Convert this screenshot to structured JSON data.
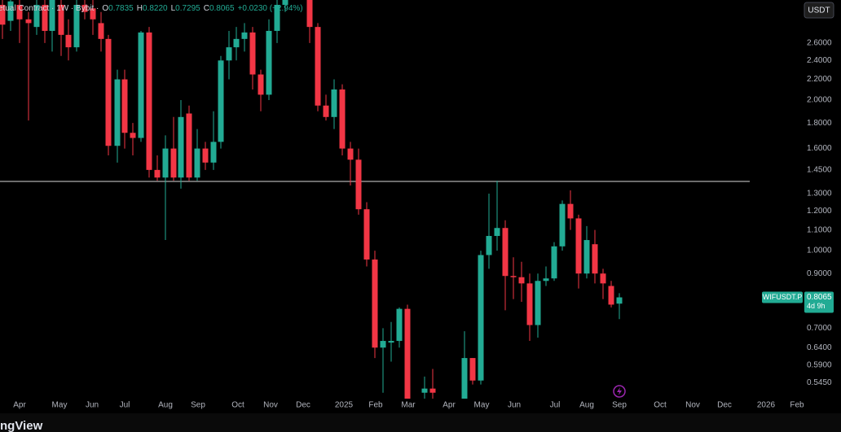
{
  "header": {
    "symbol": "etual Contract · 1W · Bybit ·",
    "ohlc": [
      {
        "key": "O",
        "value": "0.7835"
      },
      {
        "key": "H",
        "value": "0.8220"
      },
      {
        "key": "L",
        "value": "0.7295"
      },
      {
        "key": "C",
        "value": "0.8065"
      }
    ],
    "change": "+0.0230 (+2.94%)"
  },
  "currency": "USDT",
  "footer_logo": "ngView",
  "chart_data": {
    "type": "candlestick",
    "log_scale": true,
    "grid": false,
    "up_color": "#22ab94",
    "down_color": "#f23645",
    "x": [
      0.3,
      1.3,
      2.4,
      3.5,
      4.5,
      5.5,
      6.4,
      7.5,
      8.4,
      9.4,
      10.4,
      11.4,
      12.4,
      13.3,
      14.4,
      15.3,
      16.3,
      17.3,
      18.3,
      19.3,
      20.3,
      21.3,
      22.2,
      23.2,
      24.2,
      25.2,
      26.2,
      27.1,
      28.1,
      29,
      30,
      31,
      32,
      33,
      34,
      35,
      38,
      39,
      40,
      41,
      42,
      43,
      44,
      45,
      46,
      47,
      48,
      49,
      50,
      52.1,
      53.1,
      57,
      58,
      59,
      60,
      61,
      62,
      63,
      64,
      65,
      66,
      67,
      68,
      69,
      70,
      71,
      72,
      73,
      74,
      75,
      76
    ],
    "open": [
      3.1,
      2.88,
      3.1,
      2.9,
      2.8,
      3.1,
      2.75,
      3.1,
      2.7,
      2.55,
      3.1,
      3.05,
      2.85,
      2.65,
      1.62,
      2.2,
      1.72,
      1.68,
      2.73,
      1.45,
      1.4,
      1.6,
      1.4,
      1.88,
      1.4,
      1.6,
      1.5,
      1.65,
      2.4,
      2.55,
      2.65,
      2.73,
      2.25,
      2.05,
      2.75,
      3.1,
      3.2,
      2.8,
      1.95,
      1.85,
      2.1,
      1.6,
      1.52,
      1.21,
      0.96,
      0.64,
      0.655,
      0.66,
      0.765,
      0.52,
      0.53,
      0.5,
      0.61,
      0.55,
      0.98,
      1.07,
      1.11,
      0.89,
      0.885,
      0.86,
      0.71,
      0.87,
      0.88,
      1.02,
      1.24,
      1.16,
      0.9,
      1.03,
      0.9,
      0.85,
      0.7835
    ],
    "high": [
      3.3,
      3.3,
      3.3,
      3.0,
      3.3,
      3.2,
      3.3,
      3.2,
      2.9,
      3.3,
      3.3,
      3.2,
      3.0,
      2.7,
      2.3,
      2.3,
      1.8,
      2.75,
      2.8,
      1.55,
      1.7,
      1.85,
      2.0,
      1.95,
      1.75,
      1.65,
      1.9,
      2.45,
      2.75,
      2.8,
      2.85,
      2.8,
      2.3,
      2.9,
      3.3,
      3.4,
      3.3,
      2.85,
      2.05,
      2.2,
      2.15,
      1.65,
      1.6,
      1.25,
      1.0,
      0.7,
      0.72,
      0.77,
      0.78,
      0.56,
      0.58,
      0.69,
      0.61,
      1.0,
      1.3,
      1.38,
      1.15,
      0.97,
      0.95,
      0.9,
      0.9,
      0.93,
      1.04,
      1.26,
      1.32,
      1.18,
      1.12,
      1.1,
      0.92,
      0.87,
      0.822
    ],
    "low": [
      2.65,
      2.75,
      2.6,
      1.82,
      2.7,
      2.6,
      2.5,
      2.45,
      2.4,
      2.5,
      2.9,
      2.7,
      2.5,
      1.55,
      1.5,
      1.6,
      1.55,
      1.65,
      1.4,
      1.38,
      1.05,
      1.38,
      1.33,
      1.38,
      1.38,
      1.45,
      1.45,
      1.6,
      2.2,
      2.4,
      2.5,
      2.1,
      1.9,
      2.0,
      2.6,
      3.0,
      2.6,
      1.9,
      1.82,
      1.75,
      1.55,
      1.35,
      1.18,
      0.93,
      0.61,
      0.52,
      0.6,
      0.64,
      0.49,
      0.5,
      0.5,
      0.5,
      0.54,
      0.54,
      0.92,
      1.0,
      0.76,
      0.8,
      0.79,
      0.66,
      0.67,
      0.85,
      0.87,
      1.0,
      1.1,
      0.84,
      0.88,
      0.86,
      0.8,
      0.77,
      0.7295
    ],
    "close": [
      2.83,
      3.15,
      2.9,
      2.85,
      3.1,
      2.75,
      3.2,
      2.7,
      2.55,
      3.1,
      3.0,
      2.9,
      2.65,
      1.62,
      2.2,
      1.72,
      1.68,
      2.73,
      1.45,
      1.4,
      1.6,
      1.4,
      1.85,
      1.4,
      1.6,
      1.5,
      1.65,
      2.4,
      2.55,
      2.65,
      2.73,
      2.25,
      2.05,
      2.75,
      3.1,
      3.3,
      2.8,
      1.95,
      1.85,
      2.1,
      1.6,
      1.52,
      1.21,
      0.96,
      0.64,
      0.66,
      0.66,
      0.765,
      0.5,
      0.53,
      0.52,
      0.61,
      0.55,
      0.98,
      1.07,
      1.11,
      0.89,
      0.885,
      0.86,
      0.71,
      0.87,
      0.88,
      1.02,
      1.24,
      1.16,
      0.9,
      1.05,
      0.9,
      0.86,
      0.78,
      0.8065
    ],
    "xlim": [
      0,
      98
    ],
    "xticks": [
      {
        "value": 2.4,
        "label": "Apr"
      },
      {
        "value": 7.3,
        "label": "May"
      },
      {
        "value": 11.3,
        "label": "Jun"
      },
      {
        "value": 15.3,
        "label": "Jul"
      },
      {
        "value": 20.3,
        "label": "Aug"
      },
      {
        "value": 24.3,
        "label": "Sep"
      },
      {
        "value": 29.2,
        "label": "Oct"
      },
      {
        "value": 33.2,
        "label": "Nov"
      },
      {
        "value": 37.2,
        "label": "Dec"
      },
      {
        "value": 42.2,
        "label": "2025"
      },
      {
        "value": 46.1,
        "label": "Feb"
      },
      {
        "value": 50.1,
        "label": "Mar"
      },
      {
        "value": 55.1,
        "label": "Apr"
      },
      {
        "value": 59.1,
        "label": "May"
      },
      {
        "value": 63.1,
        "label": "Jun"
      },
      {
        "value": 68.1,
        "label": "Jul"
      },
      {
        "value": 72,
        "label": "Aug"
      },
      {
        "value": 76,
        "label": "Sep"
      },
      {
        "value": 81,
        "label": "Oct"
      },
      {
        "value": 85,
        "label": "Nov"
      },
      {
        "value": 88.9,
        "label": "Dec"
      },
      {
        "value": 94,
        "label": "2026"
      },
      {
        "value": 97.8,
        "label": "Feb"
      }
    ],
    "ylim": [
      0.506,
      3.17
    ],
    "yticks": [
      {
        "value": 0.545,
        "label": "0.5450"
      },
      {
        "value": 0.59,
        "label": "0.5900"
      },
      {
        "value": 0.64,
        "label": "0.6400"
      },
      {
        "value": 0.7,
        "label": "0.7000"
      },
      {
        "value": 0.8,
        "label": "0.8000"
      },
      {
        "value": 0.9,
        "label": "0.9000"
      },
      {
        "value": 1.0,
        "label": "1.0000"
      },
      {
        "value": 1.1,
        "label": "1.1000"
      },
      {
        "value": 1.2,
        "label": "1.2000"
      },
      {
        "value": 1.3,
        "label": "1.3000"
      },
      {
        "value": 1.45,
        "label": "1.4500"
      },
      {
        "value": 1.6,
        "label": "1.6000"
      },
      {
        "value": 1.8,
        "label": "1.8000"
      },
      {
        "value": 2.0,
        "label": "2.0000"
      },
      {
        "value": 2.2,
        "label": "2.2000"
      },
      {
        "value": 2.4,
        "label": "2.4000"
      },
      {
        "value": 2.6,
        "label": "2.6000"
      }
    ],
    "hline": {
      "value": 1.375,
      "color": "#d9d9d9",
      "x_end": 92
    },
    "last_price": {
      "symbol": "WIFUSDT.P",
      "value": 0.8065,
      "label": "0.8065",
      "countdown": "4d 9h"
    }
  }
}
